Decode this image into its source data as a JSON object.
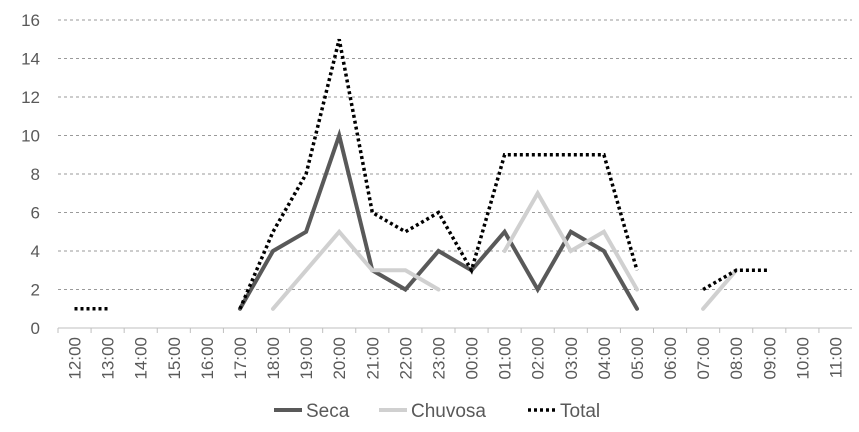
{
  "chart_data": {
    "type": "line",
    "categories": [
      "12:00",
      "13:00",
      "14:00",
      "15:00",
      "16:00",
      "17:00",
      "18:00",
      "19:00",
      "20:00",
      "21:00",
      "22:00",
      "23:00",
      "00:00",
      "01:00",
      "02:00",
      "03:00",
      "04:00",
      "05:00",
      "06:00",
      "07:00",
      "08:00",
      "09:00",
      "10:00",
      "11:00"
    ],
    "ylim": [
      0,
      16
    ],
    "yticks": [
      0,
      2,
      4,
      6,
      8,
      10,
      12,
      14,
      16
    ],
    "grid": true,
    "legend_position": "bottom",
    "series": [
      {
        "name": "Seca",
        "color": "#595959",
        "style": "solid",
        "values": [
          null,
          null,
          null,
          null,
          null,
          1,
          4,
          5,
          10,
          3,
          2,
          4,
          3,
          5,
          2,
          5,
          4,
          1,
          null,
          null,
          null,
          null,
          null,
          null
        ]
      },
      {
        "name": "Chuvosa",
        "color": "#d0d0d0",
        "style": "solid",
        "values": [
          null,
          null,
          null,
          null,
          null,
          null,
          1,
          3,
          5,
          3,
          3,
          2,
          null,
          4,
          7,
          4,
          5,
          2,
          null,
          1,
          3,
          null,
          null,
          null
        ]
      },
      {
        "name": "Total",
        "color": "#000000",
        "style": "dotted",
        "values": [
          1,
          1,
          null,
          null,
          null,
          1,
          5,
          8,
          15,
          6,
          5,
          6,
          3,
          9,
          9,
          9,
          9,
          3,
          null,
          2,
          3,
          3,
          null,
          null
        ]
      }
    ]
  }
}
